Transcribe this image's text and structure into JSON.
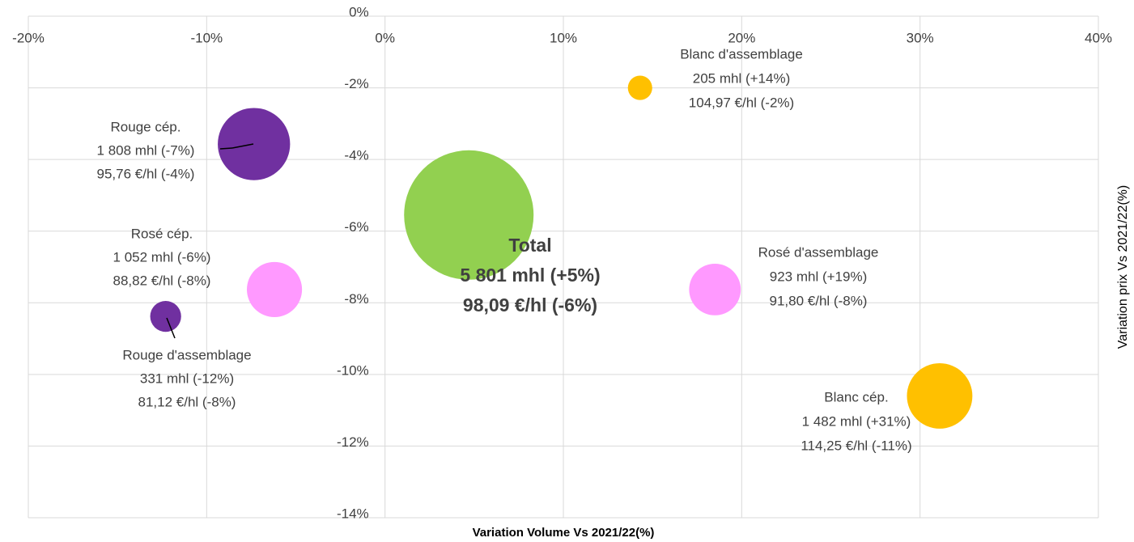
{
  "chart_data": {
    "type": "bubble",
    "x_label": "Variation Volume Vs 2021/22(%)",
    "y_label": "Variation prix Vs 2021/22(%)",
    "xlim": [
      -20,
      40
    ],
    "ylim": [
      -14,
      0
    ],
    "xticks": [
      {
        "value": -20,
        "label": "-20%"
      },
      {
        "value": -10,
        "label": "-10%"
      },
      {
        "value": 0,
        "label": "0%"
      },
      {
        "value": 10,
        "label": "10%"
      },
      {
        "value": 20,
        "label": "20%"
      },
      {
        "value": 30,
        "label": "30%"
      },
      {
        "value": 40,
        "label": "40%"
      }
    ],
    "yticks": [
      {
        "value": 0,
        "label": "0%"
      },
      {
        "value": -2,
        "label": "-2%"
      },
      {
        "value": -4,
        "label": "-4%"
      },
      {
        "value": -6,
        "label": "-6%"
      },
      {
        "value": -8,
        "label": "-8%"
      },
      {
        "value": -10,
        "label": "-10%"
      },
      {
        "value": -12,
        "label": "-12%"
      },
      {
        "value": -14,
        "label": "-14%"
      }
    ],
    "grid": true,
    "series": [
      {
        "name": "Total",
        "color": "#92d050",
        "x": [
          4.7
        ],
        "values": [
          -5.55
        ],
        "sizes": [
          5801
        ],
        "labels": [
          "5 801 mhl (+5%)",
          "98,09 €/hl (-6%)"
        ]
      },
      {
        "name": "Blanc d'assemblage",
        "color": "#ffc000",
        "x": [
          14.3
        ],
        "values": [
          -2.0
        ],
        "sizes": [
          205
        ],
        "labels": [
          "205 mhl (+14%)",
          "104,97 €/hl (-2%)"
        ]
      },
      {
        "name": "Rouge cép.",
        "color": "#7030a0",
        "x": [
          -7.35
        ],
        "values": [
          -3.57
        ],
        "sizes": [
          1808
        ],
        "labels": [
          "1 808 mhl (-7%)",
          "95,76 €/hl (-4%)"
        ]
      },
      {
        "name": "Rosé cép.",
        "color": "#ff99ff",
        "x": [
          -6.2
        ],
        "values": [
          -7.63
        ],
        "sizes": [
          1052
        ],
        "labels": [
          "1 052 mhl (-6%)",
          "88,82 €/hl (-8%)"
        ]
      },
      {
        "name": "Rouge d'assemblage",
        "color": "#7030a0",
        "x": [
          -12.3
        ],
        "values": [
          -8.38
        ],
        "sizes": [
          331
        ],
        "labels": [
          "331 mhl (-12%)",
          "81,12 €/hl (-8%)"
        ]
      },
      {
        "name": "Rosé d'assemblage",
        "color": "#ff99ff",
        "x": [
          18.5
        ],
        "values": [
          -7.63
        ],
        "sizes": [
          923
        ],
        "labels": [
          "923 mhl (+19%)",
          "91,80 €/hl (-8%)"
        ]
      },
      {
        "name": "Blanc cép.",
        "color": "#ffc000",
        "x": [
          31.1
        ],
        "values": [
          -10.6
        ],
        "sizes": [
          1482
        ],
        "labels": [
          "1 482 mhl (+31%)",
          "114,25 €/hl (-11%)"
        ]
      }
    ]
  }
}
